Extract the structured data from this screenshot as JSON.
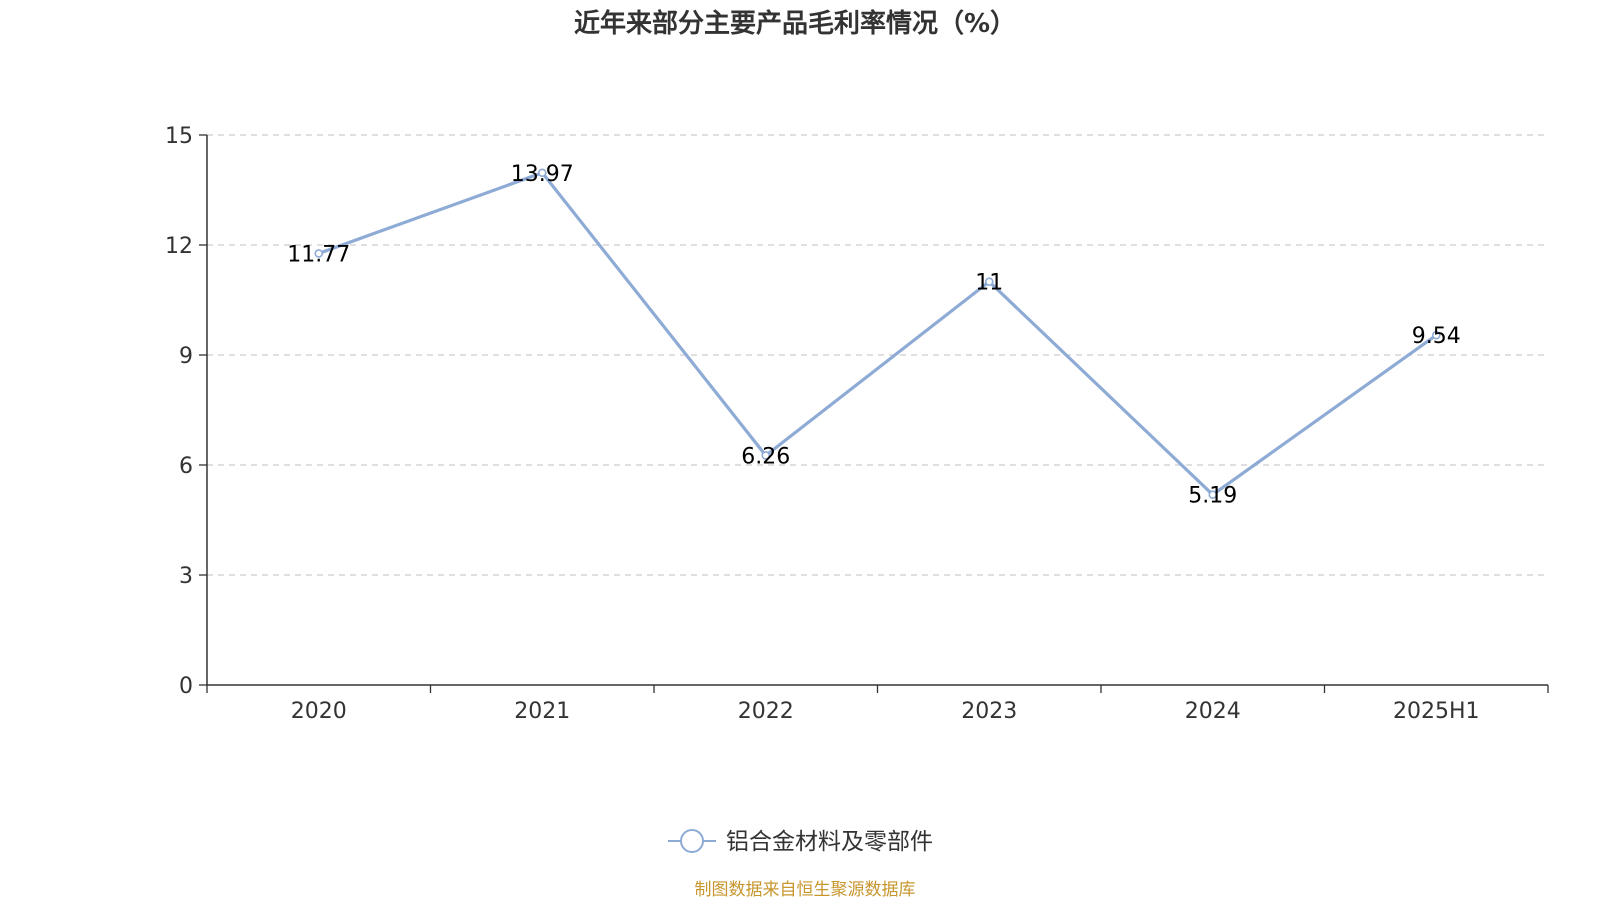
{
  "chart_data": {
    "type": "line",
    "title": "近年来部分主要产品毛利率情况（%）",
    "categories": [
      "2020",
      "2021",
      "2022",
      "2023",
      "2024",
      "2025H1"
    ],
    "series": [
      {
        "name": "铝合金材料及零部件",
        "values": [
          11.77,
          13.97,
          6.26,
          11,
          5.19,
          9.54
        ],
        "labels": [
          "11.77",
          "13.97",
          "6.26",
          "11",
          "5.19",
          "9.54"
        ],
        "color": "#8eabd6"
      }
    ],
    "ylim": [
      0,
      15
    ],
    "yticks": [
      0,
      3,
      6,
      9,
      12,
      15
    ],
    "grid": true,
    "legend_position": "bottom"
  },
  "footer": {
    "source": "制图数据来自恒生聚源数据库"
  },
  "colors": {
    "axis": "#333333",
    "grid": "#cccccc",
    "source": "#c8962e"
  }
}
